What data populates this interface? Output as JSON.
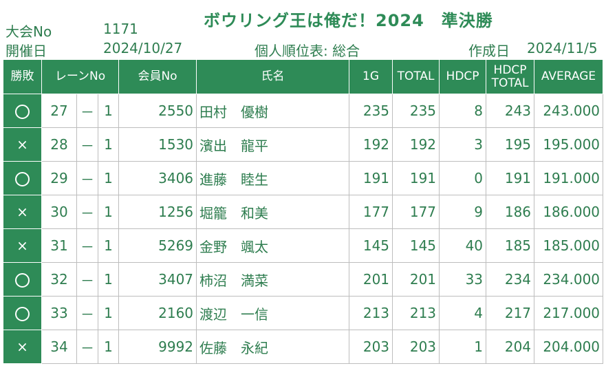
{
  "title": "ボウリング王は俺だ！2024　準決勝",
  "meta": {
    "tournament_label": "大会No",
    "tournament_no": "1171",
    "date_label": "開催日",
    "date": "2024/10/27",
    "subtitle": "個人順位表: 総合",
    "created_label": "作成日",
    "created_date": "2024/11/5"
  },
  "table": {
    "headers": {
      "winloss": "勝敗",
      "lane": "レーンNo",
      "member": "会員No",
      "name": "氏名",
      "g1": "1G",
      "total": "TOTAL",
      "hdcp": "HDCP",
      "hdcp_total_1": "HDCP",
      "hdcp_total_2": "TOTAL",
      "average": "AVERAGE"
    },
    "rows": [
      {
        "result": "win",
        "lane": "27",
        "dash": "－",
        "pos": "1",
        "member": "2550",
        "name": "田村　優樹",
        "g1": "235",
        "total": "235",
        "hdcp": "8",
        "hdcp_total": "243",
        "average": "243.000"
      },
      {
        "result": "loss",
        "lane": "28",
        "dash": "－",
        "pos": "1",
        "member": "1530",
        "name": "濱出　龍平",
        "g1": "192",
        "total": "192",
        "hdcp": "3",
        "hdcp_total": "195",
        "average": "195.000"
      },
      {
        "result": "win",
        "lane": "29",
        "dash": "－",
        "pos": "1",
        "member": "3406",
        "name": "進藤　睦生",
        "g1": "191",
        "total": "191",
        "hdcp": "0",
        "hdcp_total": "191",
        "average": "191.000"
      },
      {
        "result": "loss",
        "lane": "30",
        "dash": "－",
        "pos": "1",
        "member": "1256",
        "name": "堀籠　和美",
        "g1": "177",
        "total": "177",
        "hdcp": "9",
        "hdcp_total": "186",
        "average": "186.000"
      },
      {
        "result": "loss",
        "lane": "31",
        "dash": "－",
        "pos": "1",
        "member": "5269",
        "name": "金野　颯太",
        "g1": "145",
        "total": "145",
        "hdcp": "40",
        "hdcp_total": "185",
        "average": "185.000"
      },
      {
        "result": "win",
        "lane": "32",
        "dash": "－",
        "pos": "1",
        "member": "3407",
        "name": "柿沼　満菜",
        "g1": "201",
        "total": "201",
        "hdcp": "33",
        "hdcp_total": "234",
        "average": "234.000"
      },
      {
        "result": "win",
        "lane": "33",
        "dash": "－",
        "pos": "1",
        "member": "2160",
        "name": "渡辺　一信",
        "g1": "213",
        "total": "213",
        "hdcp": "4",
        "hdcp_total": "217",
        "average": "217.000"
      },
      {
        "result": "loss",
        "lane": "34",
        "dash": "－",
        "pos": "1",
        "member": "9992",
        "name": "佐藤　永紀",
        "g1": "203",
        "total": "203",
        "hdcp": "1",
        "hdcp_total": "204",
        "average": "204.000"
      }
    ]
  },
  "colors": {
    "accent": "#2e8b57",
    "text": "#2e7d4f"
  }
}
